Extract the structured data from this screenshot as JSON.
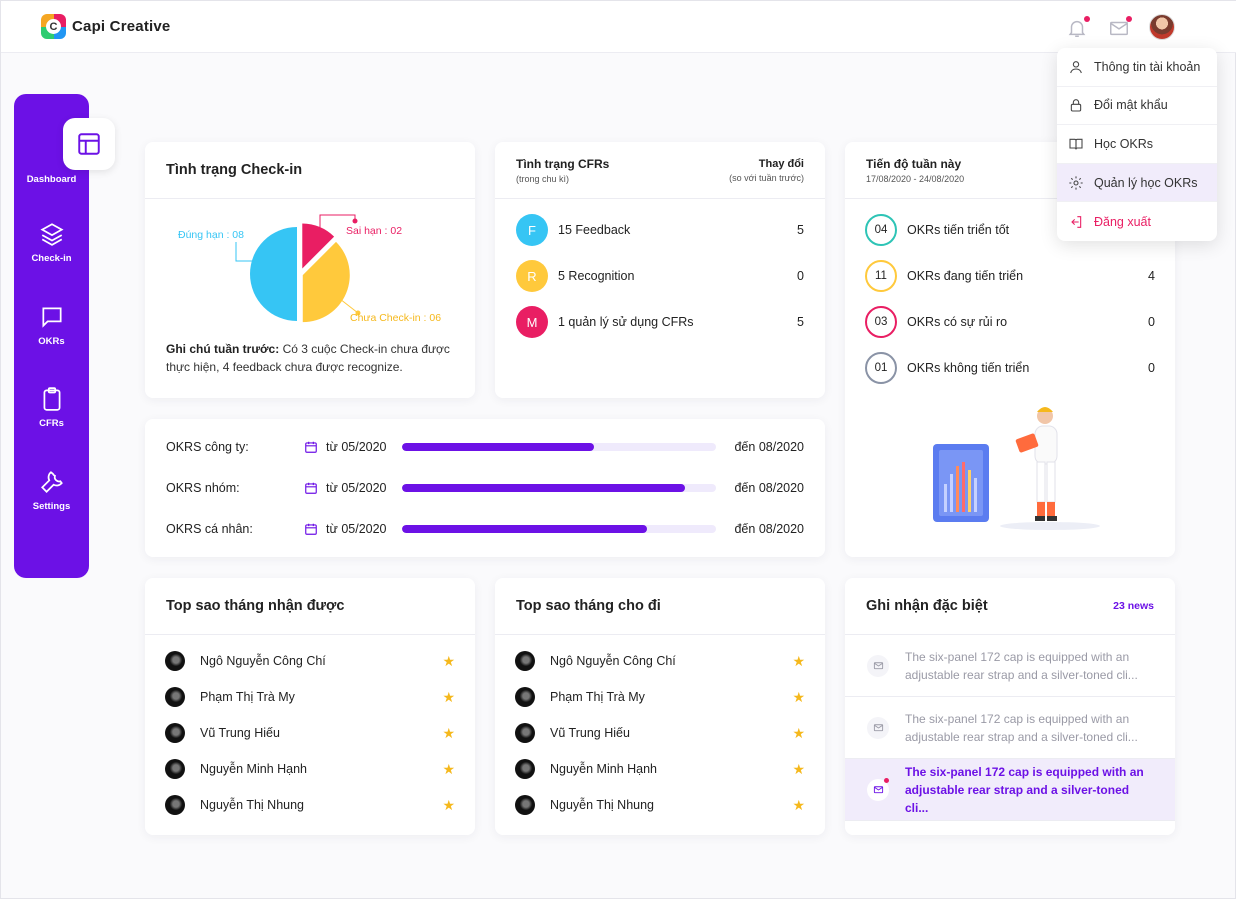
{
  "app": {
    "name": "Capi Creative",
    "logo_letter": "C"
  },
  "header": {
    "icons": [
      "bell-icon",
      "mail-icon",
      "avatar"
    ],
    "menu": [
      {
        "label": "Thông tin tài khoản",
        "icon": "user-icon"
      },
      {
        "label": "Đổi mật khẩu",
        "icon": "lock-icon"
      },
      {
        "label": "Học OKRs",
        "icon": "book-icon"
      },
      {
        "label": "Quản lý học OKRs",
        "icon": "gear-icon",
        "active": true
      },
      {
        "label": "Đăng xuất",
        "icon": "logout-icon",
        "color": "#e91e63"
      }
    ]
  },
  "sidebar": {
    "items": [
      {
        "label": "Dashboard",
        "icon": "dashboard-icon",
        "active": true
      },
      {
        "label": "Check-in",
        "icon": "layers-icon"
      },
      {
        "label": "OKRs",
        "icon": "chat-icon"
      },
      {
        "label": "CFRs",
        "icon": "clipboard-icon"
      },
      {
        "label": "Settings",
        "icon": "wrench-icon"
      }
    ]
  },
  "checkin": {
    "title": "Tình trạng Check-in",
    "labels": {
      "on_time": "Đúng hạn : 08",
      "late": "Sai hạn : 02",
      "not_checked": "Chưa Check-in : 06"
    },
    "note_label": "Ghi chú tuần trước:",
    "note_text": " Có 3 cuộc Check-in chưa được thực hiện, 4 feedback chưa được recognize."
  },
  "chart_data": {
    "type": "pie",
    "categories": [
      "Đúng hạn",
      "Sai hạn",
      "Chưa Check-in"
    ],
    "values": [
      8,
      2,
      6
    ],
    "colors": [
      "#36c5f4",
      "#e91e63",
      "#ffc93c"
    ]
  },
  "cfrs": {
    "title": "Tình trạng CFRs",
    "subtitle": "(trong chu kì)",
    "change_title": "Thay đổi",
    "change_subtitle": "(so với tuần trước)",
    "rows": [
      {
        "badge": "F",
        "label": "15 Feedback",
        "value": "5",
        "color": "#36c5f4"
      },
      {
        "badge": "R",
        "label": "5 Recognition",
        "value": "0",
        "color": "#ffc93c"
      },
      {
        "badge": "M",
        "label": "1 quản lý sử dụng CFRs",
        "value": "5",
        "color": "#e91e63"
      }
    ]
  },
  "week": {
    "title": "Tiến độ tuần này",
    "range": "17/08/2020 - 24/08/2020",
    "rows": [
      {
        "count": "04",
        "label": "OKRs tiến triển tốt",
        "value": "",
        "color": "#2ec4b6"
      },
      {
        "count": "11",
        "label": "OKRs đang tiến triển",
        "value": "4",
        "color": "#ffc93c"
      },
      {
        "count": "03",
        "label": "OKRs có sự rủi ro",
        "value": "0",
        "color": "#e91e63"
      },
      {
        "count": "01",
        "label": "OKRs không tiến triển",
        "value": "0",
        "color": "#8a93a6"
      }
    ]
  },
  "okr_progress": {
    "rows": [
      {
        "label": "OKRS công ty:",
        "from": "từ 05/2020",
        "to": "đến 08/2020",
        "progress": 0.61
      },
      {
        "label": "OKRS nhóm:",
        "from": "từ 05/2020",
        "to": "đến 08/2020",
        "progress": 0.9
      },
      {
        "label": "OKRS cá nhân:",
        "from": "từ 05/2020",
        "to": "đến 08/2020",
        "progress": 0.78
      }
    ]
  },
  "stars_received": {
    "title": "Top sao tháng nhận được",
    "people": [
      "Ngô Nguyễn Công Chí",
      "Phạm Thị Trà My",
      "Vũ Trung Hiếu",
      "Nguyễn Minh Hạnh",
      "Nguyễn Thị Nhung"
    ]
  },
  "stars_given": {
    "title": "Top sao tháng cho đi",
    "people": [
      "Ngô Nguyễn Công Chí",
      "Phạm Thị Trà My",
      "Vũ Trung Hiếu",
      "Nguyễn Minh Hạnh",
      "Nguyễn Thị Nhung"
    ]
  },
  "recognition": {
    "title": "Ghi nhận đặc biệt",
    "count": "23 news",
    "items": [
      {
        "text": "The six-panel 172 cap is equipped with an adjustable rear strap and a silver-toned cli...",
        "unread": false
      },
      {
        "text": "The six-panel 172 cap is equipped with an adjustable rear strap and a silver-toned cli...",
        "unread": false
      },
      {
        "text": "The six-panel 172 cap is equipped with an adjustable rear strap and a silver-toned cli...",
        "unread": true
      }
    ]
  }
}
